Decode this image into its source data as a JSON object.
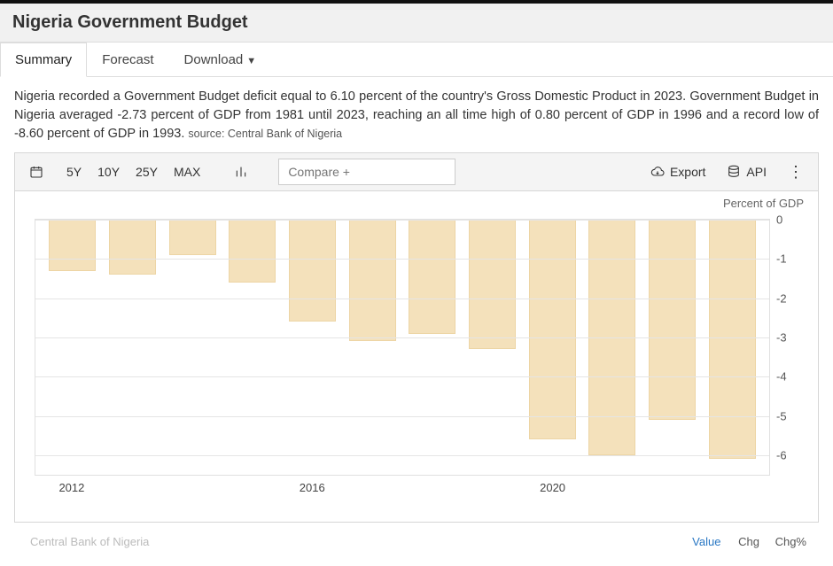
{
  "header": {
    "title": "Nigeria Government Budget"
  },
  "tabs": [
    {
      "label": "Summary",
      "active": true,
      "has_dropdown": false
    },
    {
      "label": "Forecast",
      "active": false,
      "has_dropdown": false
    },
    {
      "label": "Download",
      "active": false,
      "has_dropdown": true
    }
  ],
  "description": {
    "text": "Nigeria recorded a Government Budget deficit equal to 6.10 percent of the country's Gross Domestic Product in 2023. Government Budget in Nigeria averaged -2.73 percent of GDP from 1981 until 2023, reaching an all time high of 0.80 percent of GDP in 1996 and a record low of -8.60 percent of GDP in 1993.",
    "source_prefix": "source: ",
    "source": "Central Bank of Nigeria"
  },
  "toolbar": {
    "ranges": [
      "5Y",
      "10Y",
      "25Y",
      "MAX"
    ],
    "compare_placeholder": "Compare +",
    "export_label": "Export",
    "api_label": "API"
  },
  "chart": {
    "type": "bar",
    "unit_label": "Percent of GDP",
    "years": [
      2012,
      2013,
      2014,
      2015,
      2016,
      2017,
      2018,
      2019,
      2020,
      2021,
      2022,
      2023
    ],
    "values": [
      -1.3,
      -1.4,
      -0.9,
      -1.6,
      -2.6,
      -3.1,
      -2.9,
      -3.3,
      -5.6,
      -6.0,
      -5.1,
      -6.1
    ],
    "x_tick_years": [
      2012,
      2016,
      2020
    ],
    "y_min": -6.5,
    "y_max": 0,
    "y_ticks": [
      0,
      -1,
      -2,
      -3,
      -4,
      -5,
      -6
    ],
    "bar_color": "#f4e1bb",
    "bar_border": "#edd5a5",
    "grid_color": "#e5e5e5",
    "background_color": "#ffffff",
    "font_size_axis": 13
  },
  "footer": {
    "source_text": "Central Bank of Nigeria",
    "value_link": "Value",
    "chg": "Chg",
    "chgp": "Chg%"
  }
}
